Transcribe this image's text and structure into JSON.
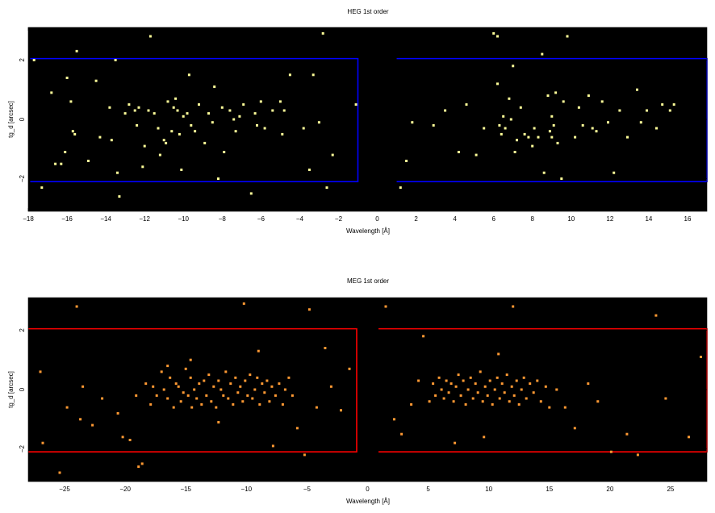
{
  "chart_data": [
    {
      "type": "scatter",
      "title": "HEG 1st order",
      "xlabel": "Wavelength [Å]",
      "ylabel": "tg_d [arcsec]",
      "xlim": [
        -18,
        17
      ],
      "ylim": [
        -3.1,
        3.1
      ],
      "xticks": [
        -18,
        -16,
        -14,
        -12,
        -10,
        -8,
        -6,
        -4,
        -2,
        0,
        2,
        4,
        6,
        8,
        10,
        12,
        14,
        16
      ],
      "xtick_labels": [
        "−18",
        "−16",
        "−14",
        "−12",
        "−10",
        "−8",
        "−6",
        "−4",
        "−2",
        "0",
        "2",
        "4",
        "6",
        "8",
        "10",
        "12",
        "14",
        "16"
      ],
      "yticks": [
        -2,
        0,
        2
      ],
      "ytick_labels": [
        "−2",
        "0",
        "2"
      ],
      "background": "#000000",
      "point_color": "#ffff99",
      "region_color": "#0000ff",
      "regions": [
        {
          "x0": -17.9,
          "x1": -1.0,
          "y0": -2.1,
          "y1": 2.05
        },
        {
          "x0": 1.0,
          "x1": 17.0,
          "y0": -2.1,
          "y1": 2.05
        }
      ],
      "points": [
        [
          -17.7,
          2.0
        ],
        [
          -17.3,
          -2.3
        ],
        [
          -16.8,
          0.9
        ],
        [
          -16.6,
          -1.5
        ],
        [
          -16.3,
          -1.5
        ],
        [
          -16.1,
          -1.1
        ],
        [
          -16.0,
          1.4
        ],
        [
          -15.8,
          0.6
        ],
        [
          -15.7,
          -0.4
        ],
        [
          -15.6,
          -0.5
        ],
        [
          -14.5,
          1.3
        ],
        [
          -14.3,
          -0.6
        ],
        [
          -13.8,
          0.4
        ],
        [
          -13.7,
          -0.7
        ],
        [
          -13.5,
          2.0
        ],
        [
          -13.4,
          -1.8
        ],
        [
          -13.3,
          -2.6
        ],
        [
          -13.0,
          0.2
        ],
        [
          -12.8,
          0.5
        ],
        [
          -12.5,
          0.3
        ],
        [
          -12.4,
          -0.2
        ],
        [
          -12.3,
          0.4
        ],
        [
          -12.0,
          -0.9
        ],
        [
          -11.8,
          0.3
        ],
        [
          -11.5,
          0.2
        ],
        [
          -11.3,
          -0.3
        ],
        [
          -11.2,
          -1.2
        ],
        [
          -11.0,
          -0.7
        ],
        [
          -10.9,
          -0.8
        ],
        [
          -10.8,
          0.6
        ],
        [
          -10.6,
          -0.4
        ],
        [
          -10.5,
          0.4
        ],
        [
          -10.4,
          0.7
        ],
        [
          -10.3,
          0.3
        ],
        [
          -10.2,
          -0.5
        ],
        [
          -10.0,
          0.1
        ],
        [
          -9.8,
          0.2
        ],
        [
          -9.6,
          -0.2
        ],
        [
          -9.4,
          -0.4
        ],
        [
          -9.2,
          0.5
        ],
        [
          -8.9,
          -0.8
        ],
        [
          -8.7,
          0.2
        ],
        [
          -8.5,
          -0.1
        ],
        [
          -8.4,
          1.1
        ],
        [
          -8.2,
          -2.0
        ],
        [
          -8.0,
          0.4
        ],
        [
          -7.9,
          -1.1
        ],
        [
          -7.6,
          0.3
        ],
        [
          -7.4,
          0.0
        ],
        [
          -7.3,
          -0.4
        ],
        [
          -7.1,
          0.1
        ],
        [
          -6.9,
          0.5
        ],
        [
          -6.5,
          -2.5
        ],
        [
          -6.3,
          0.2
        ],
        [
          -6.0,
          0.6
        ],
        [
          -5.8,
          -0.3
        ],
        [
          -5.4,
          0.3
        ],
        [
          -5.0,
          0.6
        ],
        [
          -4.8,
          0.3
        ],
        [
          -4.5,
          1.5
        ],
        [
          -3.8,
          -0.3
        ],
        [
          -3.5,
          -1.7
        ],
        [
          -3.3,
          1.5
        ],
        [
          -3.0,
          -0.1
        ],
        [
          -2.8,
          2.9
        ],
        [
          -2.6,
          -2.3
        ],
        [
          -2.3,
          -1.2
        ],
        [
          -1.1,
          0.5
        ],
        [
          -11.7,
          2.8
        ],
        [
          -10.1,
          -1.7
        ],
        [
          -12.1,
          -1.6
        ],
        [
          -15.5,
          2.3
        ],
        [
          -14.9,
          -1.4
        ],
        [
          -9.7,
          1.5
        ],
        [
          -6.2,
          -0.2
        ],
        [
          -4.9,
          -0.5
        ],
        [
          1.2,
          -2.3
        ],
        [
          1.5,
          -1.4
        ],
        [
          1.8,
          -0.1
        ],
        [
          2.9,
          -0.2
        ],
        [
          3.5,
          0.3
        ],
        [
          4.2,
          -1.1
        ],
        [
          4.6,
          0.5
        ],
        [
          5.1,
          -1.2
        ],
        [
          5.5,
          -0.3
        ],
        [
          6.0,
          2.9
        ],
        [
          6.2,
          1.2
        ],
        [
          6.3,
          -0.2
        ],
        [
          6.4,
          -0.5
        ],
        [
          6.5,
          0.1
        ],
        [
          6.6,
          -0.3
        ],
        [
          6.8,
          0.7
        ],
        [
          6.9,
          0.0
        ],
        [
          7.0,
          1.8
        ],
        [
          7.2,
          -0.7
        ],
        [
          7.4,
          0.4
        ],
        [
          7.6,
          -0.5
        ],
        [
          7.8,
          -0.6
        ],
        [
          8.0,
          -0.9
        ],
        [
          8.1,
          -0.3
        ],
        [
          8.3,
          -0.6
        ],
        [
          8.5,
          2.2
        ],
        [
          8.6,
          -1.8
        ],
        [
          8.8,
          0.8
        ],
        [
          8.9,
          -0.4
        ],
        [
          9.0,
          0.1
        ],
        [
          9.1,
          -0.2
        ],
        [
          9.2,
          0.9
        ],
        [
          9.3,
          -0.8
        ],
        [
          9.5,
          -2.0
        ],
        [
          9.6,
          0.6
        ],
        [
          9.8,
          2.8
        ],
        [
          10.2,
          -0.6
        ],
        [
          10.4,
          0.4
        ],
        [
          10.6,
          -0.2
        ],
        [
          10.9,
          0.8
        ],
        [
          11.1,
          -0.3
        ],
        [
          11.3,
          -0.4
        ],
        [
          11.6,
          0.6
        ],
        [
          11.9,
          -0.1
        ],
        [
          12.2,
          -1.8
        ],
        [
          12.5,
          0.3
        ],
        [
          12.9,
          -0.6
        ],
        [
          13.4,
          1.0
        ],
        [
          13.6,
          -0.1
        ],
        [
          13.9,
          0.3
        ],
        [
          14.4,
          -0.3
        ],
        [
          14.7,
          0.5
        ],
        [
          15.1,
          0.3
        ],
        [
          15.3,
          0.5
        ],
        [
          6.2,
          2.8
        ],
        [
          7.1,
          -1.1
        ],
        [
          9.0,
          -0.6
        ]
      ]
    },
    {
      "type": "scatter",
      "title": "MEG 1st order",
      "xlabel": "Wavelength [Å]",
      "ylabel": "tg_d [arcsec]",
      "xlim": [
        -28,
        28
      ],
      "ylim": [
        -3.1,
        3.1
      ],
      "xticks": [
        -25,
        -20,
        -15,
        -10,
        -5,
        0,
        5,
        10,
        15,
        20,
        25
      ],
      "xtick_labels": [
        "−25",
        "−20",
        "−15",
        "−10",
        "−5",
        "0",
        "5",
        "10",
        "15",
        "20",
        "25"
      ],
      "yticks": [
        -2,
        0,
        2
      ],
      "ytick_labels": [
        "−2",
        "0",
        "2"
      ],
      "background": "#000000",
      "point_color": "#ff9933",
      "region_color": "#ff0000",
      "regions": [
        {
          "x0": -28,
          "x1": -0.9,
          "y0": -2.1,
          "y1": 2.05
        },
        {
          "x0": 0.9,
          "x1": 28,
          "y0": -2.1,
          "y1": 2.05
        }
      ],
      "points": [
        [
          -27.0,
          0.6
        ],
        [
          -26.8,
          -1.8
        ],
        [
          -25.4,
          -2.8
        ],
        [
          -24.8,
          -0.6
        ],
        [
          -24.0,
          2.8
        ],
        [
          -23.7,
          -1.0
        ],
        [
          -23.5,
          0.1
        ],
        [
          -22.7,
          -1.2
        ],
        [
          -21.9,
          -0.3
        ],
        [
          -20.6,
          -0.8
        ],
        [
          -20.2,
          -1.6
        ],
        [
          -19.6,
          -1.7
        ],
        [
          -19.1,
          -0.2
        ],
        [
          -18.9,
          -2.6
        ],
        [
          -18.6,
          -2.5
        ],
        [
          -18.3,
          0.2
        ],
        [
          -17.9,
          -0.5
        ],
        [
          -17.7,
          0.1
        ],
        [
          -17.4,
          -0.2
        ],
        [
          -17.0,
          0.6
        ],
        [
          -16.8,
          0.0
        ],
        [
          -16.5,
          -0.3
        ],
        [
          -16.3,
          0.4
        ],
        [
          -16.0,
          -0.6
        ],
        [
          -15.8,
          0.2
        ],
        [
          -15.6,
          0.1
        ],
        [
          -15.4,
          -0.4
        ],
        [
          -15.2,
          -0.1
        ],
        [
          -15.0,
          0.7
        ],
        [
          -14.8,
          -0.2
        ],
        [
          -14.6,
          0.4
        ],
        [
          -14.5,
          -0.6
        ],
        [
          -14.3,
          0.0
        ],
        [
          -14.1,
          -0.3
        ],
        [
          -13.9,
          0.2
        ],
        [
          -13.7,
          -0.5
        ],
        [
          -13.5,
          0.3
        ],
        [
          -13.3,
          -0.2
        ],
        [
          -13.1,
          0.5
        ],
        [
          -12.9,
          -0.4
        ],
        [
          -12.7,
          0.1
        ],
        [
          -12.5,
          -0.6
        ],
        [
          -12.3,
          0.3
        ],
        [
          -12.1,
          0.0
        ],
        [
          -11.9,
          -0.2
        ],
        [
          -11.7,
          0.6
        ],
        [
          -11.5,
          -0.3
        ],
        [
          -11.3,
          0.2
        ],
        [
          -11.1,
          -0.5
        ],
        [
          -10.9,
          0.4
        ],
        [
          -10.7,
          -0.1
        ],
        [
          -10.5,
          0.1
        ],
        [
          -10.3,
          -0.4
        ],
        [
          -10.1,
          0.3
        ],
        [
          -9.9,
          -0.2
        ],
        [
          -9.7,
          0.5
        ],
        [
          -9.5,
          -0.3
        ],
        [
          -9.3,
          0.0
        ],
        [
          -9.1,
          0.4
        ],
        [
          -8.9,
          -0.5
        ],
        [
          -8.7,
          0.2
        ],
        [
          -8.5,
          -0.1
        ],
        [
          -8.3,
          0.3
        ],
        [
          -8.1,
          -0.4
        ],
        [
          -7.9,
          0.1
        ],
        [
          -7.6,
          -0.2
        ],
        [
          -7.3,
          0.2
        ],
        [
          -7.0,
          -0.5
        ],
        [
          -6.8,
          0.0
        ],
        [
          -6.5,
          0.4
        ],
        [
          -6.2,
          -0.2
        ],
        [
          -5.8,
          -1.3
        ],
        [
          -5.2,
          -2.2
        ],
        [
          -4.8,
          2.7
        ],
        [
          -4.2,
          -0.6
        ],
        [
          -3.5,
          1.4
        ],
        [
          -3.0,
          0.1
        ],
        [
          -2.2,
          -0.7
        ],
        [
          -1.5,
          0.7
        ],
        [
          -10.2,
          2.9
        ],
        [
          -12.3,
          -1.1
        ],
        [
          -14.6,
          1.0
        ],
        [
          -16.5,
          0.8
        ],
        [
          -7.8,
          -1.9
        ],
        [
          -9.0,
          1.3
        ],
        [
          1.5,
          2.8
        ],
        [
          2.2,
          -1.0
        ],
        [
          2.8,
          -1.5
        ],
        [
          3.6,
          -0.5
        ],
        [
          4.2,
          0.3
        ],
        [
          4.6,
          1.8
        ],
        [
          5.1,
          -0.4
        ],
        [
          5.4,
          0.2
        ],
        [
          5.6,
          -0.2
        ],
        [
          5.9,
          0.4
        ],
        [
          6.1,
          0.0
        ],
        [
          6.3,
          -0.3
        ],
        [
          6.5,
          0.3
        ],
        [
          6.7,
          -0.1
        ],
        [
          6.9,
          0.2
        ],
        [
          7.1,
          -0.4
        ],
        [
          7.3,
          0.1
        ],
        [
          7.5,
          0.5
        ],
        [
          7.7,
          -0.2
        ],
        [
          7.9,
          0.3
        ],
        [
          8.1,
          -0.5
        ],
        [
          8.3,
          0.0
        ],
        [
          8.5,
          0.4
        ],
        [
          8.7,
          -0.3
        ],
        [
          8.9,
          0.2
        ],
        [
          9.1,
          -0.1
        ],
        [
          9.3,
          0.6
        ],
        [
          9.5,
          -0.4
        ],
        [
          9.7,
          0.1
        ],
        [
          9.9,
          -0.2
        ],
        [
          10.1,
          0.3
        ],
        [
          10.3,
          -0.5
        ],
        [
          10.5,
          0.0
        ],
        [
          10.7,
          0.4
        ],
        [
          10.9,
          -0.3
        ],
        [
          11.1,
          0.2
        ],
        [
          11.3,
          -0.1
        ],
        [
          11.5,
          0.5
        ],
        [
          11.7,
          -0.4
        ],
        [
          11.9,
          0.1
        ],
        [
          12.1,
          -0.2
        ],
        [
          12.3,
          0.3
        ],
        [
          12.5,
          -0.5
        ],
        [
          12.7,
          0.0
        ],
        [
          12.9,
          0.4
        ],
        [
          13.1,
          -0.3
        ],
        [
          13.4,
          0.2
        ],
        [
          13.7,
          -0.1
        ],
        [
          14.0,
          0.3
        ],
        [
          14.3,
          -0.4
        ],
        [
          14.7,
          0.1
        ],
        [
          15.0,
          -0.6
        ],
        [
          15.6,
          0.0
        ],
        [
          16.3,
          -0.6
        ],
        [
          17.1,
          -1.3
        ],
        [
          18.2,
          0.2
        ],
        [
          19.0,
          -0.4
        ],
        [
          20.1,
          -2.1
        ],
        [
          21.4,
          -1.5
        ],
        [
          22.3,
          -2.2
        ],
        [
          23.8,
          2.5
        ],
        [
          24.6,
          -0.3
        ],
        [
          26.5,
          -1.6
        ],
        [
          27.5,
          1.1
        ],
        [
          12.0,
          2.8
        ],
        [
          9.6,
          -1.6
        ],
        [
          7.2,
          -1.8
        ],
        [
          10.8,
          1.2
        ]
      ]
    }
  ]
}
